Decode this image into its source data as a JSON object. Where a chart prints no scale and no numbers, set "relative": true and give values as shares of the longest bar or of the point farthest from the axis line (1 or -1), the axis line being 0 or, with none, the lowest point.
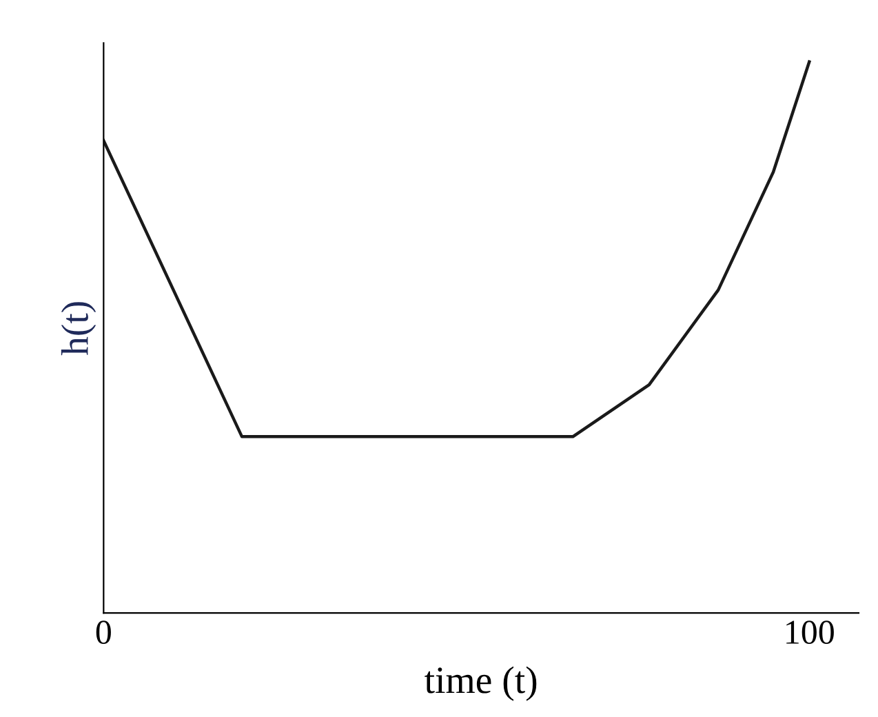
{
  "chart_data": {
    "type": "line",
    "relative": true,
    "xlabel": "time (t)",
    "ylabel": "h(t)",
    "x": [
      0,
      19.6,
      66.5,
      77.3,
      87.1,
      94.9,
      100
    ],
    "series": [
      {
        "color": "#1a1a1a",
        "values": [
          0.857,
          0.32,
          0.32,
          0.414,
          0.586,
          0.8,
          1
        ]
      }
    ],
    "xlim": [
      0,
      107
    ],
    "xticks": [
      0,
      100
    ],
    "tick_labels": "x",
    "grid": false,
    "legend": false,
    "marker": "none",
    "line_style": "solid"
  }
}
